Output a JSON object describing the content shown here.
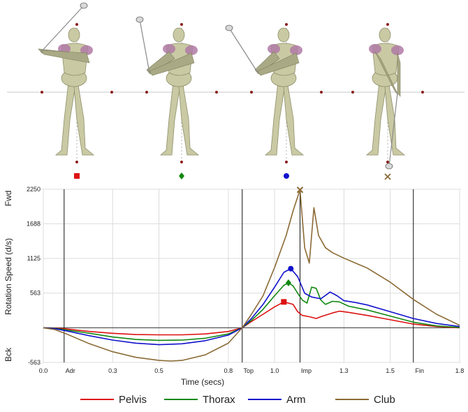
{
  "chart_data": {
    "type": "line",
    "xlabel": "Time (secs)",
    "ylabel": "Rotation Speed (d/s)",
    "y_extra_labels": {
      "top": "Fwd",
      "bottom": "Bck"
    },
    "xlim": [
      0.0,
      1.8
    ],
    "ylim": [
      -563,
      2250
    ],
    "x_ticks": [
      {
        "value": 0.0,
        "label": "0.0"
      },
      {
        "value": 0.3,
        "label": "0.3"
      },
      {
        "value": 0.5,
        "label": "0.5"
      },
      {
        "value": 0.8,
        "label": "0.8"
      },
      {
        "value": 1.0,
        "label": "1.0"
      },
      {
        "value": 1.3,
        "label": "1.3"
      },
      {
        "value": 1.5,
        "label": "1.5"
      },
      {
        "value": 1.8,
        "label": "1.8"
      }
    ],
    "y_ticks": [
      {
        "value": -563,
        "label": "-563"
      },
      {
        "value": 563,
        "label": "563"
      },
      {
        "value": 1125,
        "label": "1125"
      },
      {
        "value": 1688,
        "label": "1688"
      },
      {
        "value": 2250,
        "label": "2250"
      }
    ],
    "event_lines": [
      {
        "x": 0.09,
        "label": "Adr"
      },
      {
        "x": 0.86,
        "label": "Top"
      },
      {
        "x": 1.11,
        "label": "Imp"
      },
      {
        "x": 1.6,
        "label": "Fin"
      }
    ],
    "grid": true,
    "legend_position": "bottom",
    "series": [
      {
        "name": "Pelvis",
        "color": "#dd1111",
        "marker": "square",
        "peak": [
          1.04,
          420
        ],
        "points": [
          [
            0.0,
            0
          ],
          [
            0.05,
            -5
          ],
          [
            0.1,
            -20
          ],
          [
            0.2,
            -60
          ],
          [
            0.3,
            -90
          ],
          [
            0.4,
            -110
          ],
          [
            0.5,
            -115
          ],
          [
            0.6,
            -115
          ],
          [
            0.7,
            -100
          ],
          [
            0.8,
            -60
          ],
          [
            0.86,
            0
          ],
          [
            0.9,
            100
          ],
          [
            0.95,
            220
          ],
          [
            1.0,
            340
          ],
          [
            1.04,
            420
          ],
          [
            1.08,
            380
          ],
          [
            1.1,
            260
          ],
          [
            1.12,
            200
          ],
          [
            1.15,
            180
          ],
          [
            1.18,
            150
          ],
          [
            1.2,
            180
          ],
          [
            1.25,
            240
          ],
          [
            1.28,
            270
          ],
          [
            1.32,
            250
          ],
          [
            1.4,
            200
          ],
          [
            1.5,
            130
          ],
          [
            1.6,
            60
          ],
          [
            1.7,
            20
          ],
          [
            1.8,
            0
          ]
        ]
      },
      {
        "name": "Thorax",
        "color": "#118811",
        "marker": "diamond",
        "peak": [
          1.06,
          730
        ],
        "points": [
          [
            0.0,
            0
          ],
          [
            0.05,
            -10
          ],
          [
            0.1,
            -35
          ],
          [
            0.2,
            -90
          ],
          [
            0.3,
            -150
          ],
          [
            0.4,
            -190
          ],
          [
            0.5,
            -205
          ],
          [
            0.6,
            -200
          ],
          [
            0.7,
            -170
          ],
          [
            0.8,
            -100
          ],
          [
            0.86,
            0
          ],
          [
            0.9,
            120
          ],
          [
            0.95,
            300
          ],
          [
            1.0,
            520
          ],
          [
            1.04,
            690
          ],
          [
            1.06,
            730
          ],
          [
            1.08,
            680
          ],
          [
            1.1,
            560
          ],
          [
            1.12,
            450
          ],
          [
            1.14,
            400
          ],
          [
            1.16,
            660
          ],
          [
            1.18,
            640
          ],
          [
            1.2,
            450
          ],
          [
            1.22,
            380
          ],
          [
            1.25,
            430
          ],
          [
            1.28,
            420
          ],
          [
            1.32,
            350
          ],
          [
            1.4,
            290
          ],
          [
            1.5,
            190
          ],
          [
            1.6,
            90
          ],
          [
            1.7,
            30
          ],
          [
            1.8,
            5
          ]
        ]
      },
      {
        "name": "Arm",
        "color": "#1111cc",
        "marker": "circle",
        "peak": [
          1.07,
          960
        ],
        "points": [
          [
            0.0,
            0
          ],
          [
            0.05,
            -15
          ],
          [
            0.1,
            -50
          ],
          [
            0.2,
            -130
          ],
          [
            0.3,
            -200
          ],
          [
            0.4,
            -250
          ],
          [
            0.5,
            -275
          ],
          [
            0.6,
            -260
          ],
          [
            0.7,
            -210
          ],
          [
            0.8,
            -120
          ],
          [
            0.86,
            0
          ],
          [
            0.9,
            150
          ],
          [
            0.95,
            380
          ],
          [
            1.0,
            660
          ],
          [
            1.04,
            900
          ],
          [
            1.07,
            960
          ],
          [
            1.1,
            830
          ],
          [
            1.13,
            560
          ],
          [
            1.16,
            500
          ],
          [
            1.2,
            470
          ],
          [
            1.24,
            580
          ],
          [
            1.27,
            520
          ],
          [
            1.3,
            440
          ],
          [
            1.35,
            410
          ],
          [
            1.4,
            370
          ],
          [
            1.5,
            260
          ],
          [
            1.6,
            150
          ],
          [
            1.7,
            70
          ],
          [
            1.8,
            20
          ]
        ]
      },
      {
        "name": "Club",
        "color": "#8b6a35",
        "marker": "x",
        "peak": [
          1.11,
          2240
        ],
        "points": [
          [
            0.0,
            0
          ],
          [
            0.05,
            -30
          ],
          [
            0.1,
            -100
          ],
          [
            0.2,
            -260
          ],
          [
            0.3,
            -390
          ],
          [
            0.4,
            -480
          ],
          [
            0.5,
            -530
          ],
          [
            0.55,
            -540
          ],
          [
            0.6,
            -530
          ],
          [
            0.7,
            -440
          ],
          [
            0.8,
            -250
          ],
          [
            0.86,
            0
          ],
          [
            0.9,
            220
          ],
          [
            0.95,
            520
          ],
          [
            1.0,
            980
          ],
          [
            1.05,
            1500
          ],
          [
            1.08,
            1900
          ],
          [
            1.11,
            2240
          ],
          [
            1.13,
            1300
          ],
          [
            1.15,
            1050
          ],
          [
            1.17,
            1950
          ],
          [
            1.19,
            1500
          ],
          [
            1.22,
            1300
          ],
          [
            1.25,
            1220
          ],
          [
            1.3,
            1130
          ],
          [
            1.4,
            970
          ],
          [
            1.5,
            740
          ],
          [
            1.6,
            460
          ],
          [
            1.7,
            220
          ],
          [
            1.8,
            40
          ]
        ]
      }
    ],
    "legend": [
      {
        "name": "Pelvis",
        "color": "#dd1111"
      },
      {
        "name": "Thorax",
        "color": "#118811"
      },
      {
        "name": "Arm",
        "color": "#1111cc"
      },
      {
        "name": "Club",
        "color": "#8b6a35"
      }
    ]
  },
  "figures": [
    {
      "pose": "top-of-backswing",
      "marker": "square",
      "marker_color": "#dd1111"
    },
    {
      "pose": "downswing-early",
      "marker": "diamond",
      "marker_color": "#118811"
    },
    {
      "pose": "downswing-late",
      "marker": "circle",
      "marker_color": "#1111cc"
    },
    {
      "pose": "impact",
      "marker": "x",
      "marker_color": "#8b6a35"
    }
  ]
}
